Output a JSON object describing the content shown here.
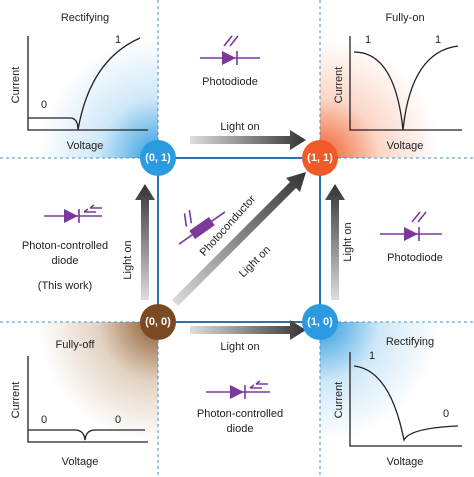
{
  "panels": [
    {
      "title": "Rectifying",
      "y_label": "Current",
      "x_label": "Voltage",
      "curve_labels": [
        "0",
        "1"
      ]
    },
    {
      "title": "Fully-on",
      "y_label": "Current",
      "x_label": "Voltage",
      "curve_labels": [
        "1",
        "1"
      ]
    },
    {
      "title": "Fully-off",
      "y_label": "Current",
      "x_label": "Voltage",
      "curve_labels": [
        "0",
        "0"
      ]
    },
    {
      "title": "Rectifying",
      "y_label": "Current",
      "x_label": "Voltage",
      "curve_labels": [
        "1",
        "0"
      ]
    }
  ],
  "nodes": [
    {
      "label": "(0, 1)"
    },
    {
      "label": "(1, 1)"
    },
    {
      "label": "(0, 0)"
    },
    {
      "label": "(1, 0)"
    }
  ],
  "transitions": [
    {
      "label": "Light on"
    },
    {
      "label": "Light on"
    },
    {
      "label": "Light on"
    },
    {
      "label": "Light on"
    },
    {
      "label": "Light on"
    }
  ],
  "devices": [
    {
      "lines": [
        "Photodiode"
      ]
    },
    {
      "lines": [
        "Photodiode"
      ]
    },
    {
      "lines": [
        "Photoconductor"
      ]
    },
    {
      "lines": [
        "Photon-controlled",
        "diode"
      ],
      "note": "(This work)"
    },
    {
      "lines": [
        "Photon-controlled",
        "diode"
      ]
    }
  ]
}
